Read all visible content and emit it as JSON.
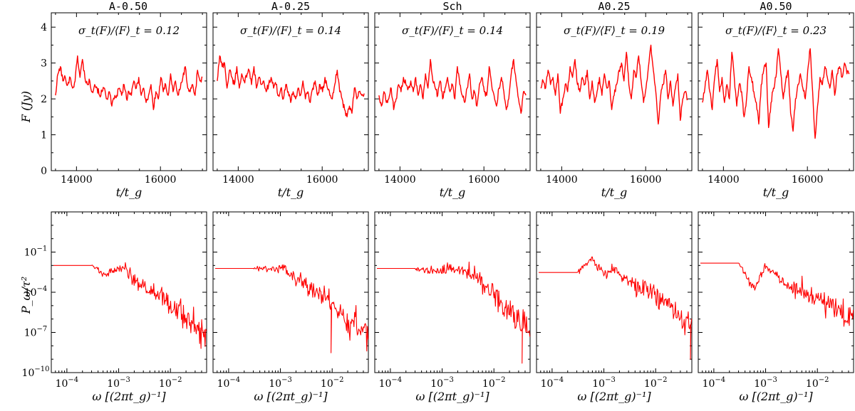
{
  "figure": {
    "panel_titles": [
      "A-0.50",
      "A-0.25",
      "Sch",
      "A0.25",
      "A0.50"
    ],
    "line_color": "#ff0000",
    "axis_color": "#000000"
  },
  "chart_data": [
    {
      "type": "line",
      "row": "lightcurve",
      "ylabel": "F (Jy)",
      "xlabel": "t/t_g",
      "xlim": [
        13400,
        17100
      ],
      "ylim": [
        0,
        4.4
      ],
      "xticks": [
        14000,
        16000
      ],
      "xtick_labels": [
        "14000",
        "16000"
      ],
      "yticks": [
        0,
        1,
        2,
        3,
        4
      ],
      "ytick_labels": [
        "0",
        "1",
        "2",
        "3",
        "4"
      ],
      "x_start": 13500,
      "x_end": 17000,
      "annotations": [
        "σ_t(F)/⟨F⟩_t = 0.12",
        "σ_t(F)/⟨F⟩_t = 0.14",
        "σ_t(F)/⟨F⟩_t = 0.14",
        "σ_t(F)/⟨F⟩_t = 0.19",
        "σ_t(F)/⟨F⟩_t = 0.23"
      ],
      "series": [
        {
          "name": "A-0.50",
          "values": [
            2.1,
            2.7,
            2.9,
            2.5,
            2.6,
            2.4,
            2.6,
            2.3,
            2.5,
            3.2,
            2.6,
            3.1,
            2.6,
            2.4,
            2.5,
            2.2,
            2.4,
            2.3,
            2.1,
            2.2,
            2.3,
            2.0,
            2.2,
            1.8,
            2.0,
            2.1,
            2.3,
            2.1,
            2.4,
            2.0,
            2.2,
            2.1,
            2.5,
            2.3,
            2.6,
            2.1,
            2.3,
            1.9,
            2.1,
            2.4,
            1.7,
            2.2,
            2.0,
            2.6,
            2.2,
            2.4,
            2.1,
            2.7,
            2.2,
            2.5,
            2.1,
            2.3,
            2.6,
            2.9,
            2.3,
            2.2,
            2.4,
            2.1,
            2.8,
            2.5,
            2.6
          ]
        },
        {
          "name": "A-0.25",
          "values": [
            2.5,
            3.2,
            2.9,
            3.0,
            2.3,
            2.8,
            2.6,
            2.4,
            2.9,
            2.3,
            2.7,
            2.5,
            2.6,
            2.8,
            2.4,
            2.9,
            2.3,
            2.6,
            2.4,
            2.5,
            2.2,
            2.4,
            2.6,
            2.3,
            2.4,
            2.1,
            2.3,
            2.0,
            2.4,
            2.2,
            1.9,
            2.2,
            2.0,
            2.3,
            2.1,
            2.5,
            2.0,
            2.2,
            1.9,
            2.3,
            2.5,
            2.1,
            2.4,
            2.2,
            2.6,
            2.3,
            2.1,
            2.0,
            2.4,
            2.8,
            2.2,
            2.0,
            1.7,
            1.5,
            1.8,
            1.6,
            2.3,
            2.0,
            2.2,
            2.1,
            2.15
          ]
        },
        {
          "name": "Sch",
          "values": [
            2.1,
            1.8,
            2.2,
            1.9,
            2.0,
            2.3,
            1.7,
            2.0,
            2.4,
            2.2,
            2.6,
            2.4,
            2.3,
            2.5,
            2.2,
            2.6,
            2.1,
            2.4,
            2.0,
            2.7,
            2.3,
            3.1,
            2.5,
            2.3,
            2.1,
            2.5,
            2.0,
            2.3,
            2.6,
            2.2,
            2.4,
            2.0,
            2.9,
            2.4,
            2.1,
            1.9,
            2.3,
            2.7,
            2.0,
            2.2,
            1.8,
            2.4,
            2.6,
            2.2,
            2.1,
            2.9,
            2.4,
            2.1,
            1.8,
            2.3,
            2.6,
            2.2,
            1.7,
            2.0,
            2.7,
            3.1,
            2.5,
            2.0,
            1.6,
            2.2,
            2.1
          ]
        },
        {
          "name": "A0.25",
          "values": [
            2.3,
            2.5,
            2.3,
            2.8,
            2.4,
            2.6,
            2.1,
            2.7,
            1.6,
            2.0,
            2.4,
            2.2,
            2.9,
            2.6,
            3.1,
            2.4,
            2.2,
            2.6,
            2.4,
            2.8,
            2.0,
            2.5,
            1.9,
            2.2,
            2.6,
            2.1,
            2.7,
            2.3,
            2.5,
            1.7,
            2.1,
            2.4,
            2.8,
            3.0,
            2.5,
            3.3,
            2.4,
            2.0,
            2.8,
            2.6,
            3.2,
            2.5,
            1.9,
            2.3,
            2.9,
            3.5,
            2.8,
            2.2,
            1.3,
            2.1,
            2.4,
            2.8,
            2.0,
            2.5,
            1.8,
            2.3,
            2.7,
            1.4,
            2.0,
            2.2,
            2.0
          ]
        },
        {
          "name": "A0.50",
          "values": [
            1.9,
            2.3,
            2.8,
            2.2,
            1.7,
            2.6,
            3.1,
            2.2,
            2.6,
            1.9,
            2.4,
            2.0,
            3.3,
            2.6,
            1.8,
            2.4,
            2.2,
            1.5,
            2.0,
            2.9,
            2.6,
            2.2,
            1.9,
            1.3,
            2.4,
            2.8,
            3.0,
            1.2,
            1.9,
            2.3,
            2.6,
            3.4,
            2.7,
            2.0,
            2.5,
            2.8,
            1.6,
            1.1,
            2.0,
            2.4,
            2.7,
            2.3,
            2.0,
            2.8,
            3.4,
            2.2,
            0.9,
            1.8,
            2.6,
            2.4,
            2.9,
            2.6,
            2.3,
            2.8,
            2.1,
            2.7,
            2.9,
            2.6,
            3.0,
            2.7,
            2.7
          ]
        }
      ]
    },
    {
      "type": "line",
      "row": "powerspectrum",
      "ylabel": "P_ω/τ²",
      "xlabel": "ω [(2πt_g)⁻¹]",
      "xscale": "log",
      "yscale": "log",
      "xlim": [
        5e-05,
        0.05
      ],
      "ylim": [
        1e-10,
        100
      ],
      "xticks": [
        0.0001,
        0.001,
        0.01
      ],
      "xtick_labels": [
        "10",
        "10",
        "10"
      ],
      "xtick_exponents": [
        "−4",
        "−3",
        "−2"
      ],
      "yticks": [
        1e-10,
        1e-07,
        0.0001,
        0.1
      ],
      "ytick_labels": [
        "10",
        "10",
        "10",
        "10"
      ],
      "ytick_exponents": [
        "−10",
        "−7",
        "−4",
        "−1"
      ],
      "series": [
        {
          "name": "A-0.50",
          "flat_level": 0.01,
          "knees": [
            [
              0.0003,
              0.01
            ],
            [
              0.0005,
              0.002
            ],
            [
              0.0008,
              0.004
            ],
            [
              0.0013,
              0.006
            ],
            [
              0.0025,
              0.0003
            ],
            [
              0.006,
              0.0001
            ],
            [
              0.02,
              1e-06
            ],
            [
              0.05,
              1e-07
            ]
          ],
          "noise_dex": 0.6,
          "dips": []
        },
        {
          "name": "A-0.25",
          "flat_level": 0.006,
          "knees": [
            [
              0.0003,
              0.006
            ],
            [
              0.0008,
              0.005
            ],
            [
              0.0012,
              0.007
            ],
            [
              0.002,
              0.001
            ],
            [
              0.005,
              0.0001
            ],
            [
              0.02,
              1e-06
            ],
            [
              0.05,
              1e-07
            ]
          ],
          "noise_dex": 0.6,
          "dips": [
            [
              0.0095,
              3e-09
            ]
          ]
        },
        {
          "name": "Sch",
          "flat_level": 0.006,
          "knees": [
            [
              0.0003,
              0.006
            ],
            [
              0.0008,
              0.003
            ],
            [
              0.0015,
              0.006
            ],
            [
              0.004,
              0.002
            ],
            [
              0.008,
              0.0003
            ],
            [
              0.02,
              3e-06
            ],
            [
              0.05,
              1e-07
            ]
          ],
          "noise_dex": 0.6,
          "dips": [
            [
              0.035,
              5e-10
            ]
          ]
        },
        {
          "name": "A0.25",
          "flat_level": 0.003,
          "knees": [
            [
              0.0003,
              0.003
            ],
            [
              0.0006,
              0.03
            ],
            [
              0.001,
              0.002
            ],
            [
              0.0015,
              0.006
            ],
            [
              0.004,
              0.0003
            ],
            [
              0.01,
              0.0001
            ],
            [
              0.05,
              2e-07
            ]
          ],
          "noise_dex": 0.55,
          "dips": [
            [
              0.047,
              1e-09
            ]
          ]
        },
        {
          "name": "A0.50",
          "flat_level": 0.015,
          "knees": [
            [
              0.0003,
              0.015
            ],
            [
              0.0006,
              0.0002
            ],
            [
              0.001,
              0.01
            ],
            [
              0.0015,
              0.003
            ],
            [
              0.0025,
              0.0003
            ],
            [
              0.01,
              3e-05
            ],
            [
              0.05,
              1e-06
            ]
          ],
          "noise_dex": 0.55,
          "dips": []
        }
      ]
    }
  ]
}
